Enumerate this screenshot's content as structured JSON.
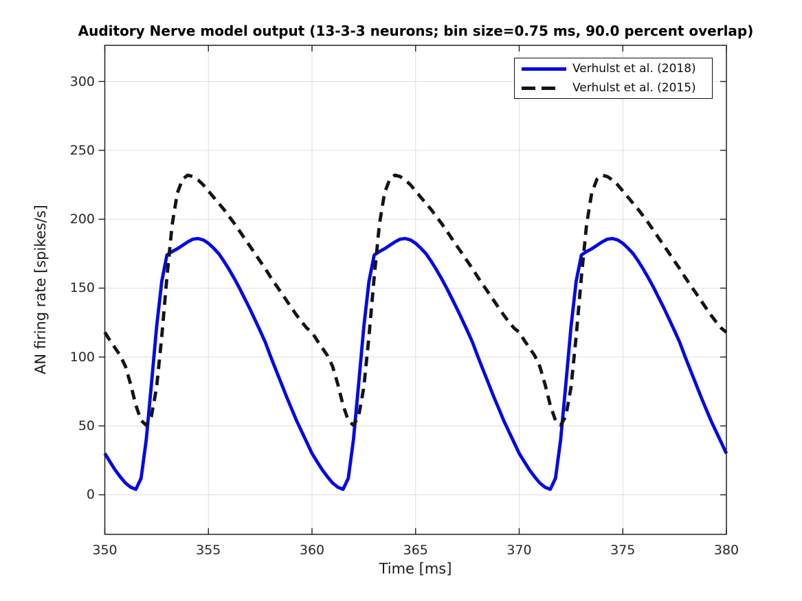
{
  "chart_data": {
    "type": "line",
    "title": "Auditory Nerve model output (13-3-3 neurons; bin size=0.75 ms, 90.0 percent overlap)",
    "xlabel": "Time [ms]",
    "ylabel": "AN firing rate [spikes/s]",
    "xlim": [
      350,
      380
    ],
    "ylim": [
      -28.7,
      326.2
    ],
    "xticks": [
      350,
      355,
      360,
      365,
      370,
      375,
      380
    ],
    "yticks": [
      0,
      50,
      100,
      150,
      200,
      250,
      300
    ],
    "grid": true,
    "grid_color": "#e0e0e0",
    "axis_color": "#202020",
    "legend_position": "top-right",
    "x": [
      350.0,
      350.25,
      350.5,
      350.75,
      351.0,
      351.25,
      351.5,
      351.75,
      352.0,
      352.25,
      352.5,
      352.75,
      353.0,
      353.25,
      353.5,
      353.75,
      354.0,
      354.25,
      354.5,
      354.75,
      355.0,
      355.25,
      355.5,
      355.75,
      356.0,
      356.25,
      356.5,
      356.75,
      357.0,
      357.25,
      357.5,
      357.75,
      358.0,
      358.25,
      358.5,
      358.75,
      359.0,
      359.25,
      359.5,
      359.75,
      360.0,
      360.25,
      360.5,
      360.75,
      361.0,
      361.25,
      361.5,
      361.75,
      362.0,
      362.25,
      362.5,
      362.75,
      363.0,
      363.25,
      363.5,
      363.75,
      364.0,
      364.25,
      364.5,
      364.75,
      365.0,
      365.25,
      365.5,
      365.75,
      366.0,
      366.25,
      366.5,
      366.75,
      367.0,
      367.25,
      367.5,
      367.75,
      368.0,
      368.25,
      368.5,
      368.75,
      369.0,
      369.25,
      369.5,
      369.75,
      370.0,
      370.25,
      370.5,
      370.75,
      371.0,
      371.25,
      371.5,
      371.75,
      372.0,
      372.25,
      372.5,
      372.75,
      373.0,
      373.25,
      373.5,
      373.75,
      374.0,
      374.25,
      374.5,
      374.75,
      375.0,
      375.25,
      375.5,
      375.75,
      376.0,
      376.25,
      376.5,
      376.75,
      377.0,
      377.25,
      377.5,
      377.75,
      378.0,
      378.25,
      378.5,
      378.75,
      379.0,
      379.25,
      379.5,
      379.75,
      380.0
    ],
    "series": [
      {
        "name": "Verhulst et al. (2018)",
        "color": "#0008e6",
        "line_style": "solid",
        "line_width": 4.8,
        "values": [
          30,
          24,
          18,
          13,
          8.5,
          5.5,
          4,
          12,
          40,
          80,
          122,
          155,
          174,
          176.5,
          178.5,
          181,
          183.5,
          185.5,
          186,
          185,
          182.5,
          179,
          175,
          169.5,
          163.5,
          157,
          150,
          142.5,
          135,
          127,
          119,
          110.5,
          100.5,
          91,
          81.5,
          72,
          63,
          54,
          46,
          38,
          30,
          24,
          18,
          13,
          8.5,
          5.5,
          4,
          12,
          40,
          80,
          122,
          155,
          174,
          176.5,
          178.5,
          181,
          183.5,
          185.5,
          186,
          185,
          182.5,
          179,
          175,
          169.5,
          163.5,
          157,
          150,
          142.5,
          135,
          127,
          119,
          110.5,
          100.5,
          91,
          81.5,
          72,
          63,
          54,
          46,
          38,
          30,
          24,
          18,
          13,
          8.5,
          5.5,
          4,
          12,
          40,
          80,
          122,
          155,
          174,
          176.5,
          178.5,
          181,
          183.5,
          185.5,
          186,
          185,
          182.5,
          179,
          175,
          169.5,
          163.5,
          157,
          150,
          142.5,
          135,
          127,
          119,
          110.5,
          100.5,
          91,
          81.5,
          72,
          63,
          54,
          46,
          38,
          30
        ]
      },
      {
        "name": "Verhulst et al. (2015)",
        "color": "#141414",
        "line_style": "dashed",
        "line_width": 4.8,
        "values": [
          118,
          112,
          106.5,
          101,
          93,
          80,
          65,
          54,
          50.5,
          57,
          78,
          115,
          158,
          196,
          219,
          229,
          232,
          231,
          228.5,
          225,
          220.5,
          216,
          211.5,
          207,
          202,
          197,
          191.5,
          186,
          180.5,
          175,
          169.5,
          164,
          158,
          152.5,
          147,
          141.5,
          136,
          130.5,
          125.5,
          121,
          118,
          112,
          106.5,
          101,
          93,
          80,
          65,
          54,
          50.5,
          57,
          78,
          115,
          158,
          196,
          219,
          229,
          232,
          231,
          228.5,
          225,
          220.5,
          216,
          211.5,
          207,
          202,
          197,
          191.5,
          186,
          180.5,
          175,
          169.5,
          164,
          158,
          152.5,
          147,
          141.5,
          136,
          130.5,
          125.5,
          121,
          118,
          112,
          106.5,
          101,
          93,
          80,
          65,
          54,
          50.5,
          57,
          78,
          115,
          158,
          196,
          219,
          229,
          232,
          231,
          228.5,
          225,
          220.5,
          216,
          211.5,
          207,
          202,
          197,
          191.5,
          186,
          180.5,
          175,
          169.5,
          164,
          158,
          152.5,
          147,
          141.5,
          136,
          130.5,
          125.5,
          121,
          118
        ]
      }
    ]
  }
}
